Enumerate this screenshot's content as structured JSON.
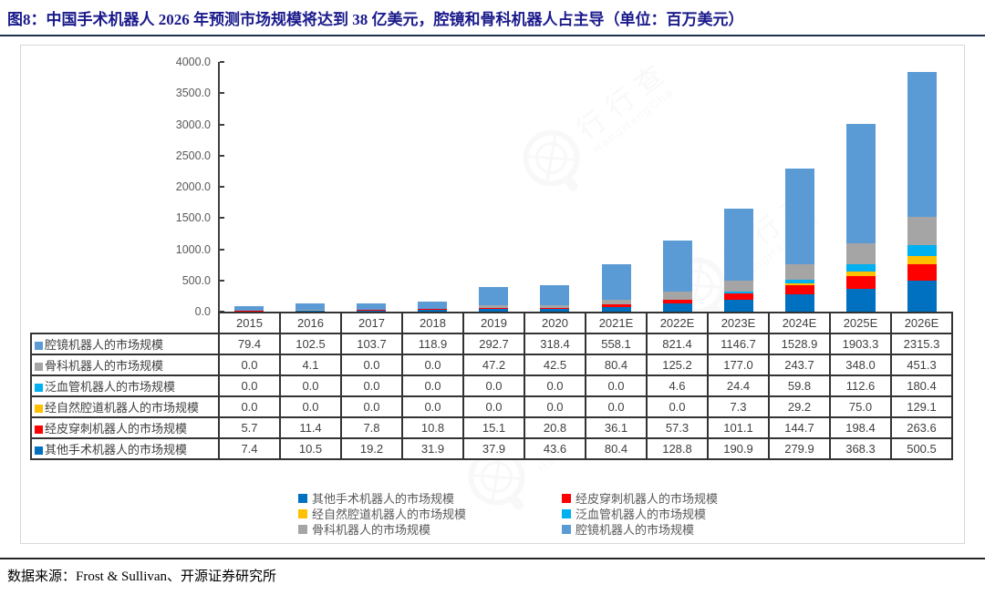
{
  "title": "图8：中国手术机器人 2026 年预测市场规模将达到 38 亿美元，腔镜和骨科机器人占主导（单位：百万美元）",
  "source": "数据来源：Frost & Sullivan、开源证券研究所",
  "watermark": {
    "text_cn": "行行查",
    "text_en": "HangHangCha"
  },
  "colors": {
    "title": "#1A1A8C",
    "axis": "#404040",
    "tick_label": "#595959",
    "table_border": "#333333",
    "table_text": "#404040",
    "legend_text": "#595959"
  },
  "chart_data": {
    "type": "bar",
    "stacked": true,
    "title": "中国手术机器人市场规模预测",
    "unit": "百万美元",
    "grid": false,
    "legend_position": "bottom",
    "ylim": [
      0,
      4000
    ],
    "ytick_step": 500,
    "ytick_decimals": 1,
    "categories": [
      "2015",
      "2016",
      "2017",
      "2018",
      "2019",
      "2020",
      "2021E",
      "2022E",
      "2023E",
      "2024E",
      "2025E",
      "2026E"
    ],
    "series": [
      {
        "name": "腔镜机器人的市场规模",
        "color": "#5B9BD5",
        "values": [
          79.4,
          102.5,
          103.7,
          118.9,
          292.7,
          318.4,
          558.1,
          821.4,
          1146.7,
          1528.9,
          1903.3,
          2315.3
        ]
      },
      {
        "name": "骨科机器人的市场规模",
        "color": "#A5A5A5",
        "values": [
          0.0,
          4.1,
          0.0,
          0.0,
          47.2,
          42.5,
          80.4,
          125.2,
          177.0,
          243.7,
          348.0,
          451.3
        ]
      },
      {
        "name": "泛血管机器人的市场规模",
        "color": "#00B0F0",
        "values": [
          0.0,
          0.0,
          0.0,
          0.0,
          0.0,
          0.0,
          0.0,
          4.6,
          24.4,
          59.8,
          112.6,
          180.4
        ]
      },
      {
        "name": "经自然腔道机器人的市场规模",
        "color": "#FFC000",
        "values": [
          0.0,
          0.0,
          0.0,
          0.0,
          0.0,
          0.0,
          0.0,
          0.0,
          7.3,
          29.2,
          75.0,
          129.1
        ]
      },
      {
        "name": "经皮穿刺机器人的市场规模",
        "color": "#FF0000",
        "values": [
          5.7,
          11.4,
          7.8,
          10.8,
          15.1,
          20.8,
          36.1,
          57.3,
          101.1,
          144.7,
          198.4,
          263.6
        ]
      },
      {
        "name": "其他手术机器人的市场规模",
        "color": "#0070C0",
        "values": [
          7.4,
          10.5,
          19.2,
          31.9,
          37.9,
          43.6,
          80.4,
          128.8,
          190.9,
          279.9,
          368.3,
          500.5
        ]
      }
    ],
    "stack_order_bottom_to_top": [
      5,
      4,
      3,
      2,
      1,
      0
    ],
    "legend_columns": [
      [
        5,
        3,
        1
      ],
      [
        4,
        2,
        0
      ]
    ]
  }
}
